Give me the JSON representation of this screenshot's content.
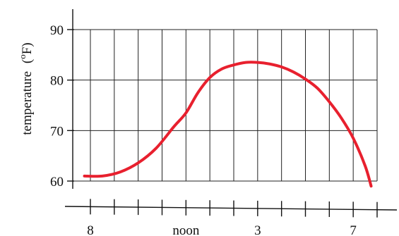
{
  "chart_data": {
    "type": "line",
    "title": "",
    "xlabel": "",
    "ylabel": "temperature (ºF)",
    "ylabel_parts": {
      "text": "temperature",
      "unit_degree": "o",
      "unit_letter": "F"
    },
    "x_ticks": [
      {
        "x": 8,
        "label": "8"
      },
      {
        "x": 12,
        "label": "noon"
      },
      {
        "x": 15,
        "label": "3"
      },
      {
        "x": 19,
        "label": "7"
      }
    ],
    "y_ticks": [
      60,
      70,
      80,
      90
    ],
    "xlim": [
      7.75,
      20.0
    ],
    "ylim": [
      58,
      90
    ],
    "x_minor_ticks": [
      8,
      9,
      10,
      11,
      12,
      13,
      14,
      15,
      16,
      17,
      18,
      19,
      20
    ],
    "grid": true,
    "line_color": "#e8202e",
    "series": [
      {
        "x": [
          7.75,
          8.5,
          9.25,
          10.0,
          10.75,
          11.5,
          12.0,
          12.5,
          13.0,
          13.5,
          14.0,
          14.5,
          15.0,
          15.5,
          16.0,
          16.5,
          17.0,
          17.5,
          18.0,
          18.5,
          19.0,
          19.5,
          19.75
        ],
        "y": [
          61,
          61,
          61.8,
          63.6,
          66.5,
          70.8,
          73.5,
          77.5,
          80.5,
          82.2,
          83.0,
          83.5,
          83.5,
          83.2,
          82.6,
          81.6,
          80.2,
          78.4,
          75.7,
          72.5,
          68.5,
          63.0,
          59.0
        ]
      }
    ]
  }
}
